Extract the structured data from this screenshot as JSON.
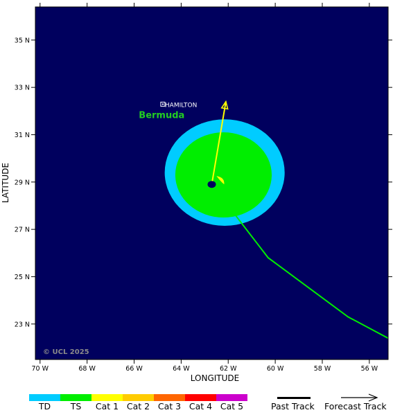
{
  "map": {
    "lon_range": [
      -70.2,
      -55.2
    ],
    "lat_range": [
      21.5,
      36.4
    ],
    "x_axis_label": "LONGITUDE",
    "y_axis_label": "LATITUDE",
    "lon_ticks": [
      {
        "value": -70,
        "label": "70 W"
      },
      {
        "value": -68,
        "label": "68 W"
      },
      {
        "value": -66,
        "label": "66 W"
      },
      {
        "value": -64,
        "label": "64 W"
      },
      {
        "value": -62,
        "label": "62 W"
      },
      {
        "value": -60,
        "label": "60 W"
      },
      {
        "value": -58,
        "label": "58 W"
      },
      {
        "value": -56,
        "label": "56 W"
      }
    ],
    "lat_ticks": [
      {
        "value": 35,
        "label": "35 N"
      },
      {
        "value": 33,
        "label": "33 N"
      },
      {
        "value": 31,
        "label": "31 N"
      },
      {
        "value": 29,
        "label": "29 N"
      },
      {
        "value": 27,
        "label": "27 N"
      },
      {
        "value": 25,
        "label": "25 N"
      },
      {
        "value": 23,
        "label": "23 N"
      }
    ],
    "copyright": "© UCL 2025",
    "colors": {
      "ocean": "#00005e",
      "td": "#00ccff",
      "ts": "#00ee00",
      "cat1": "#ffff00",
      "eye": "#00005e",
      "forecast_track": "#ffff00",
      "past_track": "#00ee00",
      "place_label": "#ffffff",
      "island_label": "#22cc22"
    },
    "places": [
      {
        "name": "HAMILTON",
        "lon": -64.78,
        "lat": 32.29
      }
    ],
    "island_label": {
      "text": "Bermuda",
      "lon": -65.8,
      "lat": 31.7
    },
    "storm": {
      "center": {
        "lon": -62.7,
        "lat": 28.9
      },
      "td_wind_field": {
        "center_lon": -62.15,
        "center_lat": 29.4,
        "radius_lon": 2.55,
        "radius_lat": 2.25
      },
      "ts_wind_field": {
        "center_lon": -62.2,
        "center_lat": 29.3,
        "radius_lon": 2.05,
        "radius_lat": 1.8
      },
      "cat1_wind_field": {
        "lon": -62.35,
        "lat": 29.05
      }
    },
    "past_track": [
      {
        "lon": -62.7,
        "lat": 28.9
      },
      {
        "lon": -60.3,
        "lat": 25.8
      },
      {
        "lon": -56.9,
        "lat": 23.3
      },
      {
        "lon": -55.2,
        "lat": 22.4
      }
    ],
    "forecast_track": [
      {
        "lon": -62.7,
        "lat": 28.9
      },
      {
        "lon": -62.1,
        "lat": 32.4
      }
    ]
  },
  "legend": {
    "categories": [
      {
        "label": "TD",
        "color": "#00ccff"
      },
      {
        "label": "TS",
        "color": "#00ee00"
      },
      {
        "label": "Cat 1",
        "color": "#ffff00"
      },
      {
        "label": "Cat 2",
        "color": "#ffcc00"
      },
      {
        "label": "Cat 3",
        "color": "#ff6600"
      },
      {
        "label": "Cat 4",
        "color": "#ff0000"
      },
      {
        "label": "Cat 5",
        "color": "#cc00cc"
      }
    ],
    "past_track_label": "Past Track",
    "forecast_track_label": "Forecast Track"
  }
}
